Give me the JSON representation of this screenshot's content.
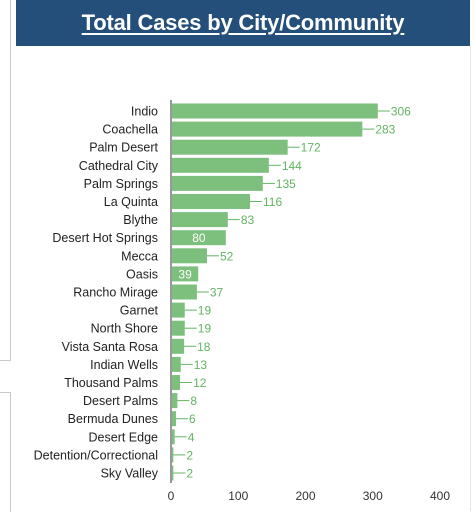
{
  "header": {
    "title": "Total Cases by City/Community"
  },
  "chart_data": {
    "type": "bar",
    "orientation": "horizontal",
    "title": "Total Cases by City/Community",
    "categories": [
      "Indio",
      "Coachella",
      "Palm Desert",
      "Cathedral City",
      "Palm Springs",
      "La Quinta",
      "Blythe",
      "Desert Hot Springs",
      "Mecca",
      "Oasis",
      "Rancho Mirage",
      "Garnet",
      "North Shore",
      "Vista Santa Rosa",
      "Indian Wells",
      "Thousand Palms",
      "Desert Palms",
      "Bermuda Dunes",
      "Desert Edge",
      "Detention/Correctional",
      "Sky Valley"
    ],
    "values": [
      306,
      283,
      172,
      144,
      135,
      116,
      83,
      80,
      52,
      39,
      37,
      19,
      19,
      18,
      13,
      12,
      8,
      6,
      4,
      2,
      2
    ],
    "inside_label_categories": [
      "Desert Hot Springs",
      "Oasis"
    ],
    "x_ticks": [
      0,
      100,
      200,
      300,
      400
    ],
    "xlim": [
      0,
      400
    ],
    "grid": false,
    "bar_color": "#7dbf7d",
    "label_color": "#63b463"
  }
}
